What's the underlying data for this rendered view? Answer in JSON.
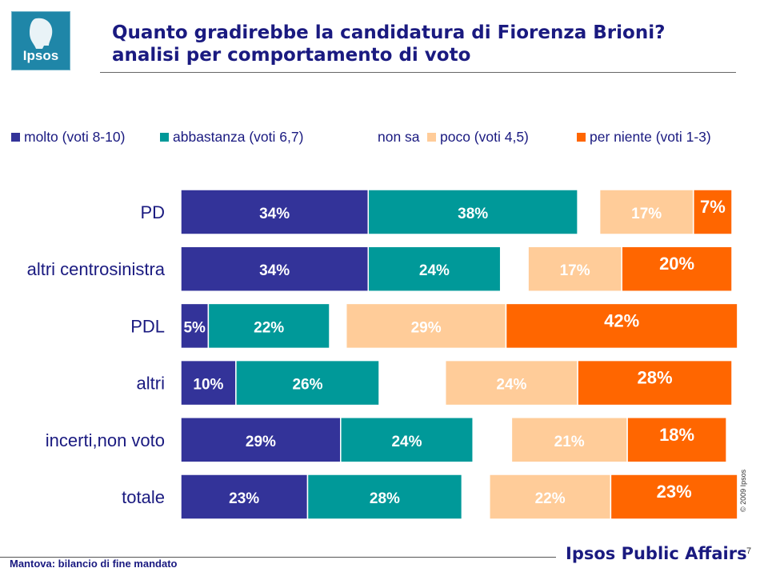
{
  "logo": {
    "text": "Ipsos"
  },
  "title": {
    "line1": "Quanto gradirebbe la candidatura di Fiorenza Brioni?",
    "line2": "analisi per comportamento di voto"
  },
  "footer": {
    "note": "Mantova: bilancio di fine mandato",
    "brand": "Ipsos Public Affairs",
    "page": "7",
    "copyright": "© 2009 Ipsos"
  },
  "colors": {
    "molto": "#333399",
    "abbastanza": "#009999",
    "non_sa": "#ffffff",
    "poco": "#ffcc99",
    "per_niente": "#ff6600",
    "text_dark": "#1a1a80"
  },
  "chart_data": {
    "type": "bar",
    "orientation": "horizontal",
    "stacked": true,
    "legend_position": "top",
    "grid": false,
    "categories": [
      "PD",
      "altri centrosinistra",
      "PDL",
      "altri",
      "incerti,non voto",
      "totale"
    ],
    "series": [
      {
        "name": "molto (voti 8-10)",
        "key": "molto",
        "values": [
          34,
          34,
          5,
          10,
          29,
          23
        ],
        "labels": [
          "34%",
          "34%",
          "5%",
          "10%",
          "29%",
          "23%"
        ]
      },
      {
        "name": "abbastanza (voti 6,7)",
        "key": "abbastanza",
        "values": [
          38,
          24,
          22,
          26,
          24,
          28
        ],
        "labels": [
          "38%",
          "24%",
          "22%",
          "26%",
          "24%",
          "28%"
        ]
      },
      {
        "name": "non sa",
        "key": "non_sa",
        "values": [
          4,
          5,
          3,
          12,
          7,
          5
        ],
        "labels": [
          "",
          "",
          "",
          "",
          "",
          ""
        ]
      },
      {
        "name": "poco (voti 4,5)",
        "key": "poco",
        "values": [
          17,
          17,
          29,
          24,
          21,
          22
        ],
        "labels": [
          "17%",
          "17%",
          "29%",
          "24%",
          "21%",
          "22%"
        ]
      },
      {
        "name": "per niente (voti 1-3)",
        "key": "per_niente",
        "values": [
          7,
          20,
          42,
          28,
          18,
          23
        ],
        "labels": [
          "7%",
          "20%",
          "42%",
          "28%",
          "18%",
          "23%"
        ]
      }
    ],
    "xlim": [
      0,
      100
    ]
  }
}
